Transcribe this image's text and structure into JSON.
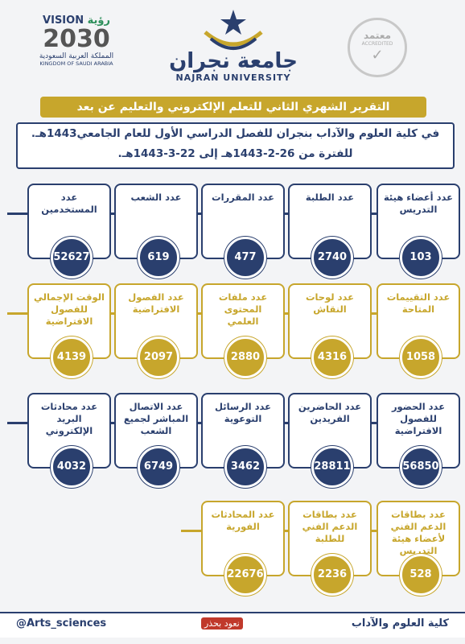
{
  "header": {
    "vision": {
      "latin": "VISION",
      "arabic": "رؤية",
      "year": "2030",
      "country_ar": "المملكة العربية السعودية",
      "country_en": "KINGDOM OF SAUDI ARABIA"
    },
    "university": {
      "arabic": "جامعة نجران",
      "english": "NAJRAN UNIVERSITY"
    },
    "badge": {
      "arabic": "معتمد",
      "english": "ACCREDITED"
    }
  },
  "title": "التقرير الشهري الثاني للتعلم الإلكتروني والتعليم عن بعد",
  "subtitle": [
    "في كلية العلوم والآداب بنجران للفصل الدراسي الأول للعام الجامعي1443هـ.",
    "للفترة من 26-2-1443هـ إلى 22-3-1443هـ."
  ],
  "rows": [
    [
      {
        "label": "عدد أعضاء هيئة التدريس",
        "value": "103"
      },
      {
        "label": "عدد الطلبة",
        "value": "2740"
      },
      {
        "label": "عدد المقررات",
        "value": "477"
      },
      {
        "label": "عدد الشعب",
        "value": "619"
      },
      {
        "label": "عدد المستخدمين",
        "value": "52627"
      }
    ],
    [
      {
        "label": "عدد التقييمات المتاحة",
        "value": "1058"
      },
      {
        "label": "عدد لوحات النقاش",
        "value": "4316"
      },
      {
        "label": "عدد ملفات المحتوى العلمي",
        "value": "2880"
      },
      {
        "label": "عدد الفصول الافتراضية",
        "value": "2097"
      },
      {
        "label": "الوقت الإجمالي للفصول الافتراضية",
        "value": "4139"
      }
    ],
    [
      {
        "label": "عدد الحضور للفصول الافتراضية",
        "value": "56850"
      },
      {
        "label": "عدد الحاضرين الفريدين",
        "value": "28811"
      },
      {
        "label": "عدد الرسائل التوعوية",
        "value": "3462"
      },
      {
        "label": "عدد الاتصال المباشر لجميع الشعب",
        "value": "6749"
      },
      {
        "label": "عدد محادثات البريد الإلكتروني",
        "value": "4032"
      }
    ],
    [
      {
        "label": "عدد بطاقات الدعم الفني لأعضاء هيئة التدريس",
        "value": "528"
      },
      {
        "label": "عدد بطاقات الدعم الفني للطلبة",
        "value": "2236"
      },
      {
        "label": "عدد المحادثات الفورية",
        "value": "22676"
      }
    ]
  ],
  "footer": {
    "handle": "@Arts_sciences",
    "campaign": "نعود بحذر",
    "college": "كلية العلوم والآداب"
  }
}
